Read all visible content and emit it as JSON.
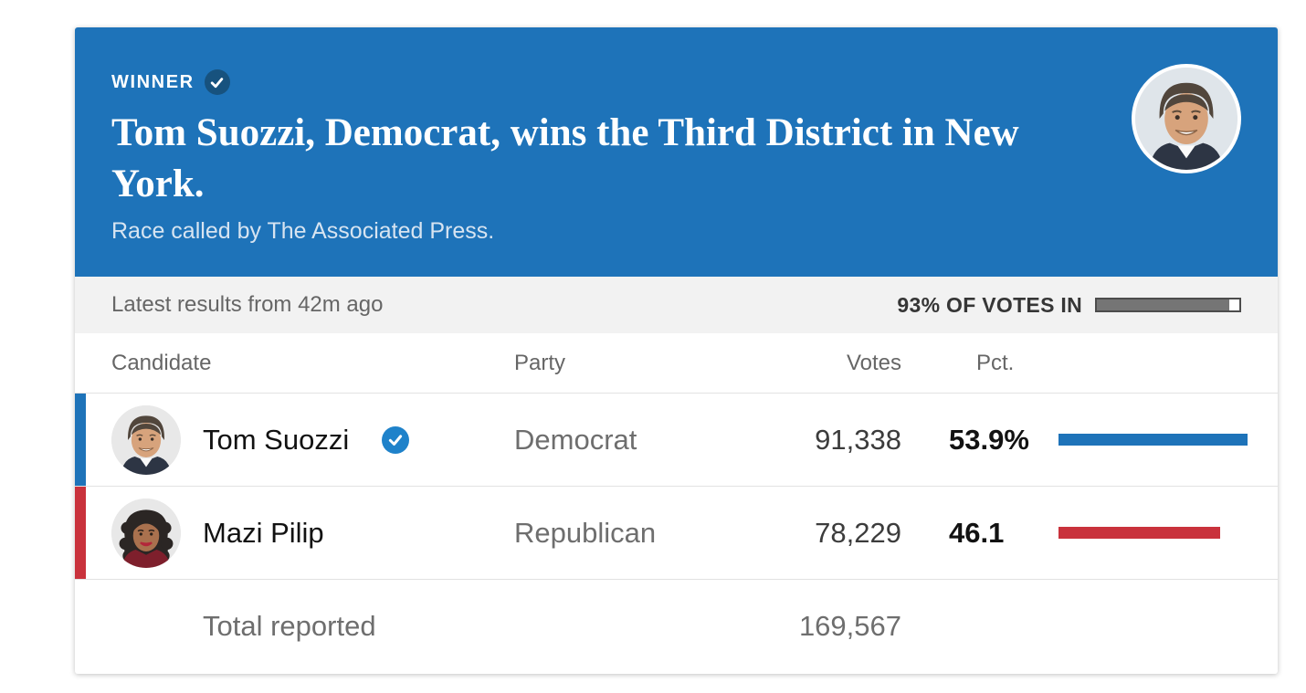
{
  "header": {
    "winner_label": "WINNER",
    "title": "Tom Suozzi, Democrat, wins the Third District in New York.",
    "subtitle": "Race called by The Associated Press."
  },
  "status_bar": {
    "latest_results": "Latest results from 42m ago",
    "votes_in_label": "93% OF VOTES IN",
    "votes_in_pct": 93
  },
  "results_table": {
    "columns": {
      "candidate": "Candidate",
      "party": "Party",
      "votes": "Votes",
      "pct": "Pct."
    },
    "candidates": [
      {
        "name": "Tom Suozzi",
        "party": "Democrat",
        "votes": "91,338",
        "pct": "53.9%",
        "pct_value": 53.9,
        "winner": true
      },
      {
        "name": "Mazi Pilip",
        "party": "Republican",
        "votes": "78,229",
        "pct": "46.1",
        "pct_value": 46.1,
        "winner": false
      }
    ],
    "total": {
      "label": "Total reported",
      "votes": "169,567"
    }
  },
  "colors": {
    "header_blue": "#1e73b9",
    "winner_badge_navy": "#17527e",
    "check_badge_blue": "#1f82ca",
    "dem_blue": "#1e73b9",
    "rep_red": "#c9323c",
    "progress_fill_gray": "#757575"
  }
}
